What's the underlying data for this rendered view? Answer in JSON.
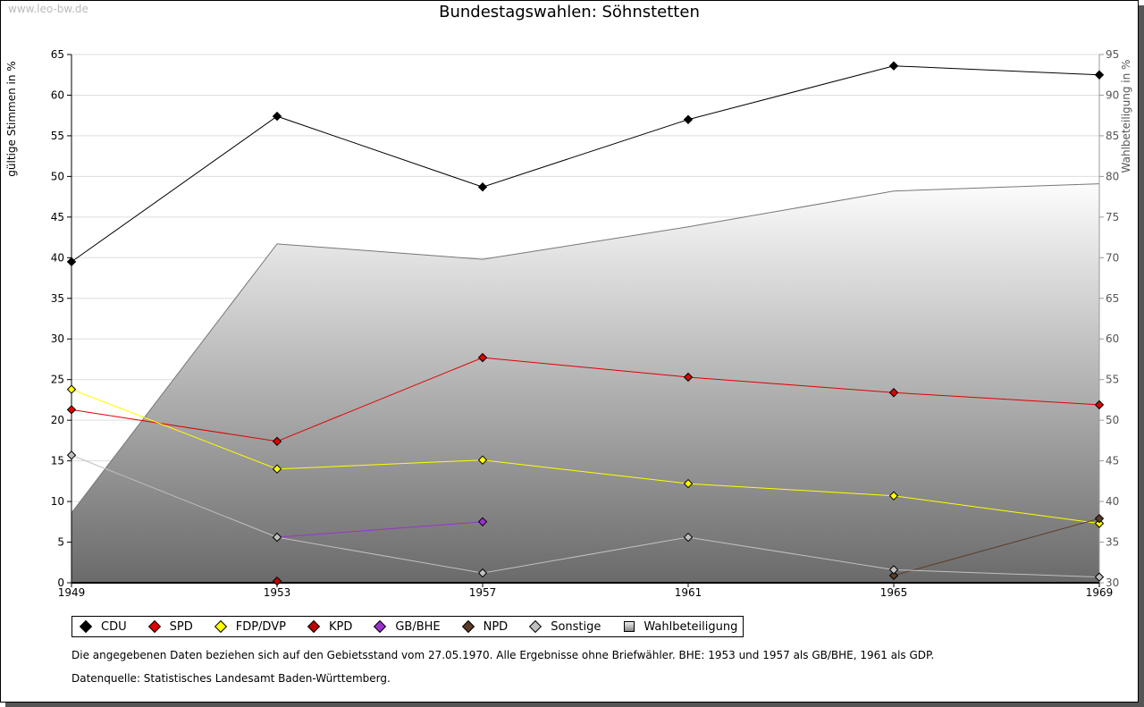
{
  "watermark": "www.leo-bw.de",
  "chart_data": {
    "type": "line",
    "title": "Bundestagswahlen: Söhnstetten",
    "ylabel": "gültige Stimmen in %",
    "y2label": "Wahlbeteiligung in %",
    "x": [
      "1949",
      "1953",
      "1957",
      "1961",
      "1965",
      "1969"
    ],
    "ylim": [
      0,
      65
    ],
    "y2lim": [
      30,
      95
    ],
    "yticks": [
      "0",
      "5",
      "10",
      "15",
      "20",
      "25",
      "30",
      "35",
      "40",
      "45",
      "50",
      "55",
      "60",
      "65"
    ],
    "y2ticks": [
      "30",
      "35",
      "40",
      "45",
      "50",
      "55",
      "60",
      "65",
      "70",
      "75",
      "80",
      "85",
      "90",
      "95"
    ],
    "grid": true,
    "series": [
      {
        "name": "CDU",
        "color": "#000000",
        "values": [
          39.5,
          57.4,
          48.7,
          57.0,
          63.6,
          62.5
        ]
      },
      {
        "name": "SPD",
        "color": "#e00000",
        "values": [
          21.3,
          17.4,
          27.7,
          25.3,
          23.4,
          21.9
        ]
      },
      {
        "name": "FDP/DVP",
        "color": "#ffff00",
        "values": [
          23.8,
          14.0,
          15.1,
          12.2,
          10.7,
          7.3
        ]
      },
      {
        "name": "KPD",
        "color": "#c00000",
        "values": [
          null,
          0.2,
          null,
          null,
          null,
          null
        ]
      },
      {
        "name": "GB/BHE",
        "color": "#9933cc",
        "values": [
          null,
          5.6,
          7.5,
          null,
          null,
          null
        ]
      },
      {
        "name": "NPD",
        "color": "#5a3a28",
        "values": [
          null,
          null,
          null,
          null,
          0.9,
          7.9
        ]
      },
      {
        "name": "Sonstige",
        "color": "#c0c0c0",
        "values": [
          15.7,
          5.6,
          1.2,
          5.6,
          1.6,
          0.7
        ]
      }
    ],
    "turnout": {
      "name": "Wahlbeteiligung",
      "values": [
        38.6,
        71.7,
        69.8,
        73.8,
        78.2,
        79.1
      ]
    },
    "legend_position": "bottom-left"
  },
  "notes": [
    "Die angegebenen Daten beziehen sich auf den Gebietsstand vom 27.05.1970. Alle Ergebnisse ohne Briefwähler. BHE: 1953 und 1957 als GB/BHE, 1961 als GDP.",
    "Datenquelle: Statistisches Landesamt Baden-Württemberg."
  ]
}
